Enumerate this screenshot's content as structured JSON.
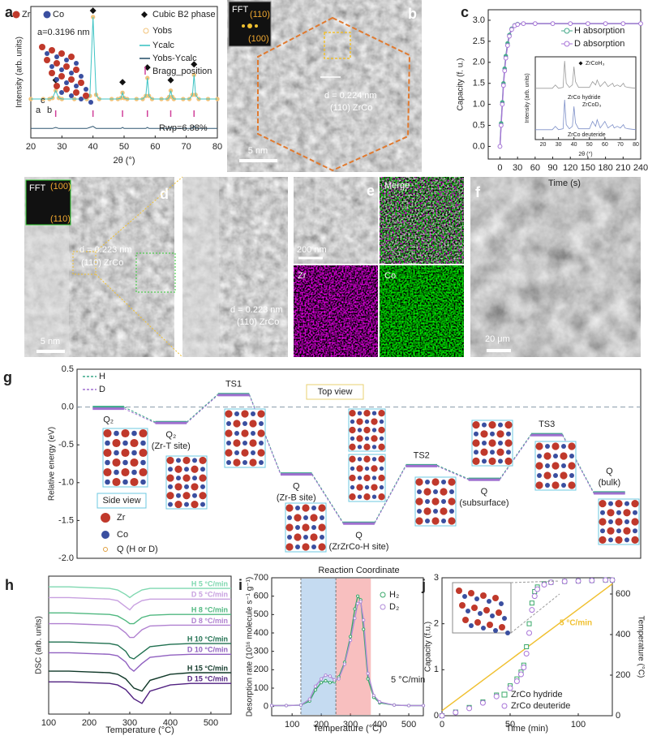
{
  "chart_data": [
    {
      "type": "line",
      "label": "a",
      "xlabel": "2θ (°)",
      "ylabel": "Intensity (arb. units)",
      "xlim": [
        20,
        80
      ],
      "xticks": [
        20,
        30,
        40,
        50,
        60,
        70,
        80
      ],
      "ylim": [
        -15,
        110
      ],
      "x": [
        20,
        24,
        26,
        27,
        28,
        29,
        30,
        34,
        38,
        39,
        40,
        41,
        42,
        46,
        48,
        49,
        49.5,
        50,
        51,
        54,
        56,
        57,
        57.5,
        58,
        59,
        62,
        64,
        64.5,
        65,
        65.5,
        66,
        69,
        71,
        72,
        72.5,
        73,
        74,
        77,
        80
      ],
      "series": [
        {
          "name": "Yobs",
          "color": "#f2c37a",
          "values": [
            22,
            22,
            22,
            23,
            30,
            23,
            22,
            22,
            22,
            25,
            100,
            26,
            22,
            22,
            22,
            23,
            28,
            23,
            22,
            22,
            22,
            25,
            42,
            25,
            22,
            22,
            22,
            24,
            30,
            24,
            22,
            22,
            22,
            26,
            45,
            26,
            22,
            22,
            22
          ]
        },
        {
          "name": "Ycalc",
          "color": "#3fc4c4",
          "values": [
            22,
            22,
            22,
            23,
            30,
            23,
            22,
            22,
            22,
            25,
            100,
            26,
            22,
            22,
            22,
            23,
            28,
            23,
            22,
            22,
            22,
            25,
            42,
            25,
            22,
            22,
            22,
            24,
            30,
            24,
            22,
            22,
            22,
            26,
            45,
            26,
            22,
            22,
            22
          ]
        },
        {
          "name": "Yobs-Ycalc",
          "color": "#2f5670",
          "values": [
            -6,
            -6,
            -6,
            -6,
            -5,
            -6,
            -6,
            -6,
            -6,
            -5,
            -4,
            -6,
            -6,
            -6,
            -6,
            -6,
            -5,
            -6,
            -6,
            -6,
            -6,
            -6,
            -5,
            -6,
            -6,
            -6,
            -6,
            -6,
            -5,
            -6,
            -6,
            -6,
            -6,
            -6,
            -4,
            -6,
            -6,
            -6,
            -6
          ]
        }
      ],
      "peak_markers": {
        "name": "Cubic B2 phase",
        "x": [
          28,
          40,
          49.5,
          57.5,
          65,
          72.5
        ],
        "y": [
          40,
          106,
          38,
          52,
          40,
          55
        ]
      },
      "bragg": {
        "name": "Bragg_position",
        "color": "#d0409a",
        "x": [
          28,
          40,
          49.5,
          57.5,
          65,
          72.5
        ]
      },
      "annotations": [
        "Zr",
        "Co",
        "a=0.3196 nm",
        "Rwp=6.88%",
        "c",
        "a",
        "b"
      ]
    },
    {
      "type": "line",
      "label": "c",
      "xlabel": "Time (s)",
      "ylabel": "Capacity (f. u.)",
      "xlim": [
        -20,
        240
      ],
      "xticks": [
        0,
        30,
        60,
        90,
        120,
        150,
        180,
        210,
        240
      ],
      "ylim": [
        -0.3,
        3.25
      ],
      "yticks": [
        {
          "value": 0,
          "label": "0.0"
        },
        0.5,
        {
          "value": 1,
          "label": "1.0"
        },
        1.5,
        {
          "value": 2,
          "label": "2.0"
        },
        2.5,
        {
          "value": 3,
          "label": "3.0"
        }
      ],
      "x": [
        0,
        2,
        4,
        6,
        8,
        10,
        13,
        16,
        20,
        25,
        30,
        40,
        60,
        90,
        120,
        150,
        180,
        210,
        240
      ],
      "series": [
        {
          "name": "H absorption",
          "color": "#45a98a",
          "values": [
            0,
            0.55,
            1.05,
            1.5,
            1.85,
            2.15,
            2.45,
            2.65,
            2.8,
            2.88,
            2.91,
            2.92,
            2.92,
            2.92,
            2.92,
            2.92,
            2.92,
            2.92,
            2.92
          ]
        },
        {
          "name": "D absorption",
          "color": "#a874d8",
          "values": [
            0,
            0.5,
            1.0,
            1.45,
            1.8,
            2.1,
            2.4,
            2.62,
            2.78,
            2.87,
            2.9,
            2.92,
            2.92,
            2.92,
            2.92,
            2.92,
            2.92,
            2.92,
            2.92
          ]
        }
      ]
    },
    {
      "type": "line",
      "xlabel": "2θ (°)",
      "ylabel": "Intensity (arb. units)",
      "xlim": [
        15,
        80
      ],
      "xticks": [
        20,
        30,
        40,
        50,
        60,
        70,
        80
      ],
      "ylim": [
        0,
        100
      ],
      "x": [
        15,
        26,
        28,
        30,
        33,
        34,
        35,
        37,
        39,
        40,
        41,
        43,
        50,
        52,
        54,
        55,
        57,
        60,
        62,
        65,
        66,
        68,
        70,
        72,
        73,
        75,
        80
      ],
      "series": [
        {
          "name": "ZrCo hydride",
          "color": "#9a9a9a",
          "values": [
            62,
            62,
            66,
            62,
            63,
            95,
            68,
            63,
            66,
            88,
            70,
            63,
            63,
            70,
            66,
            72,
            64,
            70,
            64,
            68,
            64,
            66,
            64,
            68,
            64,
            63,
            62
          ]
        },
        {
          "name": "ZrCo deuteride",
          "color": "#7d8fc8",
          "values": [
            12,
            12,
            16,
            12,
            13,
            48,
            18,
            13,
            16,
            40,
            20,
            13,
            13,
            22,
            16,
            24,
            14,
            22,
            14,
            18,
            14,
            16,
            14,
            18,
            14,
            13,
            12
          ]
        }
      ],
      "annotations": [
        "ZrCoH₃",
        "ZrCo hydride",
        "ZrCoD₃",
        "ZrCo deuteride"
      ]
    },
    {
      "type": "energy",
      "label": "g",
      "xlabel": "Reaction Coordinate",
      "ylabel": "Relative energy (eV)",
      "ylim": [
        -2,
        0.5
      ],
      "yticks": [
        0.5,
        {
          "value": 0,
          "label": "0.0"
        },
        -0.5,
        {
          "value": -1,
          "label": "-1.0"
        },
        -1.5,
        {
          "value": -2,
          "label": "-2.0"
        }
      ],
      "states": [
        "Q₂",
        "Q₂",
        "TS1",
        "Q",
        "Q",
        "TS2",
        "Q",
        "TS3",
        "Q"
      ],
      "sites": [
        null,
        "(Zr-T site)",
        null,
        "(Zr-B site)",
        "(ZrZrCo-H site)",
        null,
        "(subsurface)",
        null,
        "(bulk)"
      ],
      "series": [
        {
          "name": "H",
          "color": "#3aa888",
          "values": [
            0,
            -0.2,
            0.17,
            -0.88,
            -1.53,
            -0.77,
            -0.95,
            -0.36,
            -1.13
          ]
        },
        {
          "name": "D",
          "color": "#a070d0",
          "values": [
            0,
            -0.19,
            0.18,
            -0.87,
            -1.52,
            -0.76,
            -0.94,
            -0.35,
            -1.12
          ]
        }
      ],
      "annotations": [
        "Top view",
        "Side view",
        "Zr",
        "Co",
        "Q (H or D)"
      ]
    },
    {
      "type": "line",
      "label": "h",
      "xlabel": "Temperature (°C)",
      "ylabel": "DSC (arb. units)",
      "xlim": [
        100,
        550
      ],
      "xticks": [
        100,
        200,
        300,
        400,
        500
      ],
      "ylim": [
        10,
        100
      ],
      "x": [
        100,
        150,
        200,
        250,
        270,
        290,
        300,
        310,
        330,
        350,
        400,
        450,
        500,
        550
      ],
      "series": [
        {
          "name": "H 5 °C/min",
          "color": "#7fd8b0",
          "values": [
            93,
            93,
            92.5,
            92,
            91,
            88,
            86,
            88,
            91,
            92,
            92,
            92,
            92,
            92
          ]
        },
        {
          "name": "D 5 °C/min",
          "color": "#c8a0e0",
          "values": [
            86,
            86,
            85.5,
            85,
            84,
            80,
            78,
            81,
            84,
            85,
            85,
            85,
            85,
            85
          ]
        },
        {
          "name": "H 8 °C/min",
          "color": "#50b880",
          "values": [
            76,
            76,
            75.5,
            75,
            74,
            71,
            69,
            69,
            73,
            74.5,
            75,
            75,
            75,
            75
          ]
        },
        {
          "name": "D 8 °C/min",
          "color": "#b080d0",
          "values": [
            69,
            69,
            68.5,
            68,
            67,
            63,
            60,
            60,
            65,
            67.5,
            68,
            68,
            68,
            68
          ]
        },
        {
          "name": "H 10 °C/min",
          "color": "#207050",
          "values": [
            57,
            57,
            56.5,
            56,
            55,
            51,
            47,
            46,
            50,
            54,
            55.5,
            56,
            56,
            56
          ]
        },
        {
          "name": "D 10 °C/min",
          "color": "#9060c0",
          "values": [
            50,
            50,
            49.5,
            49,
            48,
            44,
            40,
            38,
            43,
            47,
            48.5,
            49,
            49,
            49
          ]
        },
        {
          "name": "H 15 °C/min",
          "color": "#103828",
          "values": [
            38,
            38,
            37.5,
            37,
            36,
            33,
            30,
            27,
            25,
            32,
            36,
            37,
            37,
            37
          ]
        },
        {
          "name": "D 15 °C/min",
          "color": "#502080",
          "values": [
            31,
            31,
            30.5,
            30,
            29,
            26,
            23,
            20,
            17,
            25,
            29,
            30,
            30,
            30
          ]
        }
      ]
    },
    {
      "type": "line",
      "label": "i",
      "xlabel": "Temperature (°C)",
      "ylabel": "Desorption rate (10¹⁶ molecule s⁻¹ g⁻¹)",
      "xlim": [
        30,
        550
      ],
      "xticks": [
        100,
        200,
        300,
        400,
        500
      ],
      "ylim": [
        -50,
        700
      ],
      "yticks": [
        0,
        100,
        200,
        300,
        400,
        500,
        600,
        700
      ],
      "regions": [
        {
          "from": 130,
          "to": 250,
          "color": "#7fb0e0"
        },
        {
          "from": 250,
          "to": 370,
          "color": "#f07070"
        }
      ],
      "x": [
        30,
        80,
        130,
        160,
        180,
        200,
        215,
        230,
        245,
        260,
        280,
        300,
        315,
        325,
        335,
        345,
        360,
        380,
        400,
        450,
        500,
        550
      ],
      "series": [
        {
          "name": "H₂",
          "color": "#3aa86a",
          "values": [
            5,
            5,
            8,
            30,
            90,
            130,
            140,
            130,
            135,
            160,
            240,
            380,
            530,
            600,
            580,
            420,
            150,
            50,
            20,
            8,
            5,
            5
          ]
        },
        {
          "name": "D₂",
          "color": "#b08ad8",
          "values": [
            5,
            5,
            8,
            40,
            110,
            150,
            170,
            165,
            145,
            150,
            230,
            360,
            480,
            560,
            570,
            470,
            180,
            60,
            25,
            8,
            5,
            5
          ]
        }
      ],
      "annotations": [
        "5 °C/min"
      ]
    },
    {
      "type": "line",
      "label": "j",
      "xlabel": "Time (min)",
      "ylabel": "Capacity (f.u.)",
      "y2label": "Temperature (°C)",
      "xlim": [
        0,
        125
      ],
      "xticks": [
        0,
        50,
        100
      ],
      "ylim": [
        0,
        3
      ],
      "yticks": [
        0,
        1,
        2,
        3
      ],
      "y2lim": [
        0,
        680
      ],
      "y2ticks": [
        0,
        200,
        400,
        600
      ],
      "x": [
        0,
        10,
        20,
        30,
        40,
        50,
        55,
        58,
        60,
        62,
        64,
        66,
        68,
        70,
        75,
        80,
        90,
        100,
        110,
        120,
        125
      ],
      "series": [
        {
          "name": "ZrCo hydride",
          "color": "#3aa86a",
          "values": [
            0,
            0.08,
            0.18,
            0.3,
            0.45,
            0.65,
            0.8,
            0.95,
            1.1,
            1.5,
            2.0,
            2.45,
            2.7,
            2.8,
            2.87,
            2.9,
            2.92,
            2.93,
            2.94,
            2.95,
            2.95
          ]
        },
        {
          "name": "ZrCo deuteride",
          "color": "#a874d8",
          "values": [
            0,
            0.07,
            0.16,
            0.28,
            0.42,
            0.6,
            0.75,
            0.9,
            1.05,
            1.35,
            1.8,
            2.3,
            2.6,
            2.75,
            2.85,
            2.9,
            2.92,
            2.93,
            2.94,
            2.95,
            2.95
          ]
        },
        {
          "name": "5 °C/min",
          "color": "#f0c030",
          "axis": "y2",
          "values": [
            25,
            75,
            125,
            175,
            225,
            275,
            300,
            315,
            325,
            335,
            345,
            355,
            365,
            375,
            400,
            425,
            475,
            525,
            575,
            625,
            650
          ]
        }
      ]
    }
  ],
  "images": [
    {
      "label": "b",
      "texts": [
        "FFT",
        "(110)",
        "(100)",
        "d = 0.224 nm",
        "(110) ZrCo",
        "5 nm"
      ]
    },
    {
      "label": "d",
      "texts": [
        "FFT",
        "(100)",
        "(110)",
        "d = 0.223 nm",
        "(110) ZrCo",
        "5 nm",
        "d = 0.223 nm",
        "(110) ZrCo"
      ]
    },
    {
      "label": "e",
      "texts": [
        "200 nm",
        "Merge",
        "Zr",
        "Co"
      ]
    },
    {
      "label": "f",
      "texts": [
        "20 μm"
      ]
    }
  ]
}
